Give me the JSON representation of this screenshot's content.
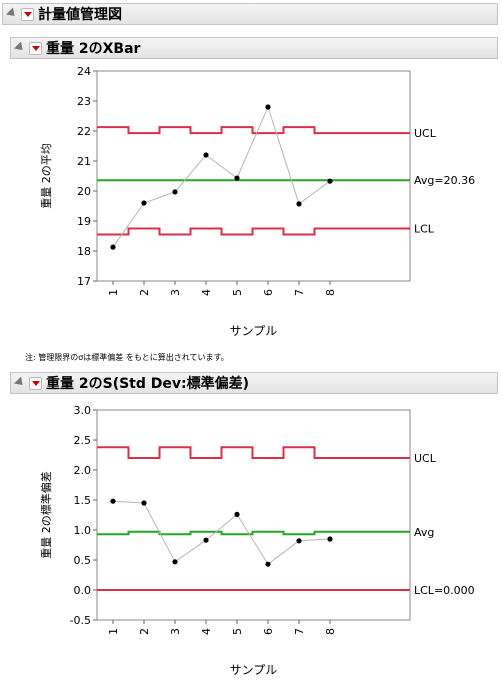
{
  "outline_title": "計量値管理図",
  "chart1_header": "重量 2のXBar",
  "chart2_header": "重量 2のS(Std Dev:標準偏差)",
  "note": "注: 管理限界のσは標準偏差 をもとに算出されています。",
  "chart_data": [
    {
      "type": "line",
      "xlabel": "サンプル",
      "ylabel": "重量 2の平均",
      "x": [
        1,
        2,
        3,
        4,
        5,
        6,
        7,
        8
      ],
      "values": [
        18.13,
        19.6,
        19.97,
        21.2,
        20.43,
        22.8,
        19.57,
        20.33
      ],
      "ylim": [
        17,
        24
      ],
      "yticks": [
        "17",
        "18",
        "19",
        "20",
        "21",
        "22",
        "23",
        "24"
      ],
      "xticks": [
        "1",
        "2",
        "3",
        "4",
        "5",
        "6",
        "7",
        "8"
      ],
      "center": 20.36,
      "ucl": [
        22.13,
        21.93,
        22.13,
        21.93,
        22.13,
        21.93,
        22.13,
        21.93
      ],
      "lcl": [
        18.55,
        18.75,
        18.55,
        18.75,
        18.55,
        18.75,
        18.55,
        18.75
      ],
      "labels": {
        "ucl": "UCL",
        "center": "Avg=20.36",
        "lcl": "LCL"
      },
      "colors": {
        "limits": "#d9304a",
        "center": "#22a822",
        "series": "#b5b5b5",
        "points": "#000000"
      }
    },
    {
      "type": "line",
      "xlabel": "サンプル",
      "ylabel": "重量 2の標準偏差",
      "x": [
        1,
        2,
        3,
        4,
        5,
        6,
        7,
        8
      ],
      "values": [
        1.48,
        1.45,
        0.47,
        0.83,
        1.26,
        0.43,
        0.82,
        0.85
      ],
      "ylim": [
        -0.5,
        3.0
      ],
      "yticks": [
        "-0.5",
        "0.0",
        "0.5",
        "1.0",
        "1.5",
        "2.0",
        "2.5",
        "3.0"
      ],
      "xticks": [
        "1",
        "2",
        "3",
        "4",
        "5",
        "6",
        "7",
        "8"
      ],
      "center": [
        0.93,
        0.97,
        0.93,
        0.97,
        0.93,
        0.97,
        0.93,
        0.97
      ],
      "ucl": [
        2.38,
        2.2,
        2.38,
        2.2,
        2.38,
        2.2,
        2.38,
        2.2
      ],
      "lcl": 0.0,
      "labels": {
        "ucl": "UCL",
        "center": "Avg",
        "lcl": "LCL=0.000"
      },
      "colors": {
        "limits": "#d9304a",
        "center": "#22a822",
        "series": "#b5b5b5",
        "points": "#000000"
      }
    }
  ]
}
